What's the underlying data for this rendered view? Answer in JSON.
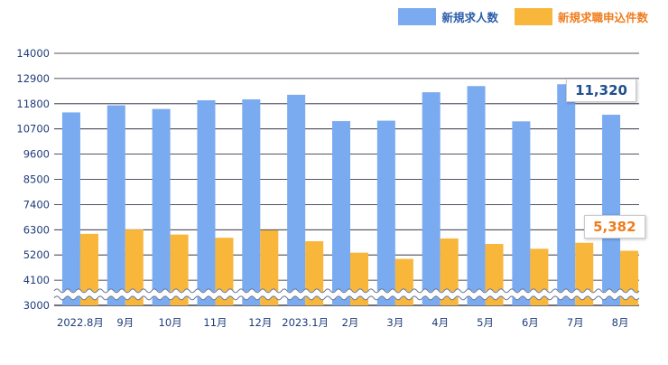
{
  "chart_data": {
    "type": "bar",
    "categories": [
      "2022.8月",
      "9月",
      "10月",
      "11月",
      "12月",
      "2023.1月",
      "2月",
      "3月",
      "4月",
      "5月",
      "6月",
      "7月",
      "8月"
    ],
    "series": [
      {
        "name": "新規求人数",
        "color": "#7aaaf0",
        "values": [
          11420,
          11730,
          11570,
          11950,
          11990,
          12190,
          11040,
          11060,
          12300,
          12570,
          11030,
          12650,
          11320
        ]
      },
      {
        "name": "新規求職申込件数",
        "color": "#f8b63b",
        "values": [
          6120,
          6310,
          6090,
          5950,
          6280,
          5800,
          5300,
          5030,
          5920,
          5680,
          5470,
          5730,
          5382
        ]
      }
    ],
    "yticks": [
      3000,
      4100,
      5200,
      6300,
      7400,
      8500,
      9600,
      10700,
      11800,
      12900,
      14000
    ],
    "ylim": [
      3000,
      14000
    ],
    "axis_break": true,
    "grid": true,
    "legend_position": "top-right",
    "callouts": [
      {
        "series": 0,
        "index": 12,
        "text": "11,320",
        "color": "#1f4f8f"
      },
      {
        "series": 1,
        "index": 12,
        "text": "5,382",
        "color": "#f07c1c"
      }
    ]
  }
}
